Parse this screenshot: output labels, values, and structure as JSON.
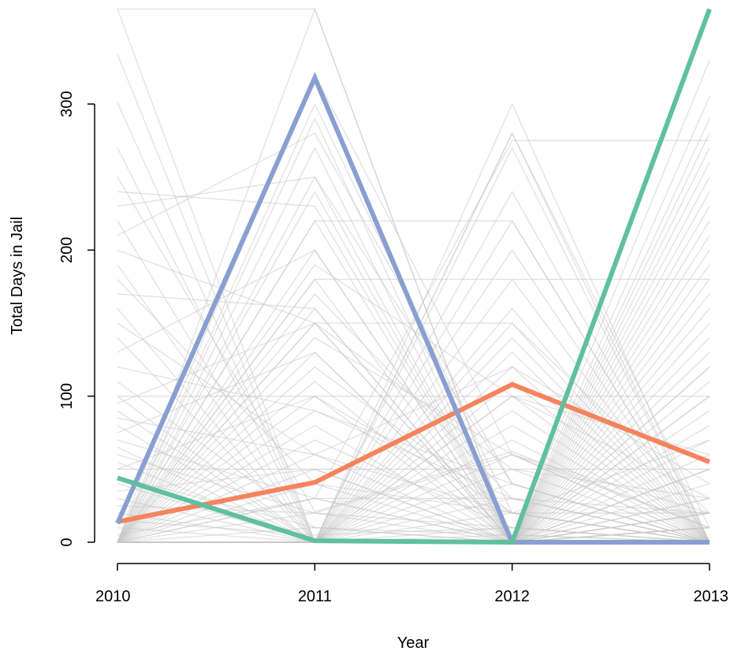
{
  "chart_data": {
    "type": "line",
    "title": "",
    "xlabel": "Year",
    "ylabel": "Total Days in Jail",
    "categories": [
      "2010",
      "2011",
      "2012",
      "2013"
    ],
    "y_ticks": [
      0,
      100,
      200,
      300
    ],
    "y_tick_labels": [
      "0",
      "100",
      "200",
      "300"
    ],
    "ylim": [
      0,
      365
    ],
    "grid": false,
    "legend": "none",
    "background_color": "#c8c8c8",
    "series": [
      {
        "color": "#f4845e",
        "values": [
          14,
          41,
          108,
          55
        ]
      },
      {
        "color": "#8a9fd1",
        "values": [
          13,
          318,
          0,
          0
        ]
      },
      {
        "color": "#5fc0a0",
        "values": [
          44,
          1,
          0,
          365
        ]
      }
    ],
    "background_lines": [
      [
        365,
        365,
        0,
        0
      ],
      [
        365,
        0,
        0,
        0
      ],
      [
        334,
        0,
        0,
        0
      ],
      [
        301,
        0,
        5,
        0
      ],
      [
        270,
        0,
        0,
        0
      ],
      [
        250,
        21,
        62,
        10
      ],
      [
        240,
        230,
        0,
        50
      ],
      [
        230,
        250,
        0,
        10
      ],
      [
        220,
        0,
        0,
        0
      ],
      [
        210,
        280,
        40,
        0
      ],
      [
        200,
        150,
        0,
        20
      ],
      [
        190,
        0,
        100,
        60
      ],
      [
        180,
        40,
        0,
        0
      ],
      [
        170,
        160,
        0,
        20
      ],
      [
        160,
        0,
        0,
        0
      ],
      [
        150,
        60,
        20,
        70
      ],
      [
        140,
        0,
        0,
        0
      ],
      [
        130,
        200,
        0,
        0
      ],
      [
        120,
        90,
        30,
        0
      ],
      [
        110,
        10,
        0,
        120
      ],
      [
        100,
        0,
        0,
        0
      ],
      [
        95,
        150,
        50,
        30
      ],
      [
        90,
        0,
        0,
        0
      ],
      [
        85,
        60,
        120,
        40
      ],
      [
        80,
        0,
        0,
        0
      ],
      [
        75,
        130,
        0,
        10
      ],
      [
        70,
        30,
        30,
        20
      ],
      [
        65,
        0,
        0,
        0
      ],
      [
        60,
        20,
        10,
        0
      ],
      [
        55,
        0,
        0,
        100
      ],
      [
        50,
        100,
        20,
        0
      ],
      [
        45,
        10,
        5,
        0
      ],
      [
        40,
        0,
        0,
        0
      ],
      [
        35,
        50,
        0,
        20
      ],
      [
        30,
        0,
        0,
        0
      ],
      [
        25,
        20,
        60,
        0
      ],
      [
        20,
        0,
        0,
        0
      ],
      [
        15,
        5,
        10,
        0
      ],
      [
        10,
        0,
        0,
        0
      ],
      [
        5,
        30,
        0,
        10
      ],
      [
        0,
        365,
        0,
        0
      ],
      [
        0,
        320,
        60,
        0
      ],
      [
        0,
        300,
        20,
        0
      ],
      [
        0,
        290,
        0,
        0
      ],
      [
        0,
        270,
        0,
        10
      ],
      [
        0,
        250,
        40,
        0
      ],
      [
        0,
        240,
        0,
        0
      ],
      [
        0,
        220,
        0,
        50
      ],
      [
        0,
        200,
        0,
        0
      ],
      [
        0,
        190,
        100,
        0
      ],
      [
        0,
        180,
        0,
        0
      ],
      [
        0,
        170,
        30,
        0
      ],
      [
        0,
        160,
        0,
        0
      ],
      [
        0,
        150,
        0,
        0
      ],
      [
        0,
        140,
        60,
        20
      ],
      [
        0,
        130,
        0,
        0
      ],
      [
        0,
        120,
        20,
        0
      ],
      [
        0,
        110,
        0,
        0
      ],
      [
        0,
        100,
        0,
        0
      ],
      [
        0,
        90,
        40,
        0
      ],
      [
        0,
        80,
        0,
        0
      ],
      [
        0,
        70,
        10,
        0
      ],
      [
        0,
        60,
        0,
        30
      ],
      [
        0,
        50,
        0,
        0
      ],
      [
        0,
        40,
        20,
        0
      ],
      [
        0,
        30,
        0,
        0
      ],
      [
        0,
        20,
        0,
        0
      ],
      [
        0,
        10,
        0,
        10
      ],
      [
        0,
        0,
        300,
        0
      ],
      [
        0,
        0,
        280,
        10
      ],
      [
        0,
        0,
        270,
        0
      ],
      [
        0,
        0,
        240,
        0
      ],
      [
        0,
        0,
        220,
        0
      ],
      [
        0,
        0,
        200,
        0
      ],
      [
        0,
        0,
        180,
        0
      ],
      [
        0,
        0,
        160,
        0
      ],
      [
        0,
        0,
        150,
        20
      ],
      [
        0,
        0,
        140,
        0
      ],
      [
        0,
        0,
        130,
        0
      ],
      [
        0,
        0,
        120,
        0
      ],
      [
        0,
        0,
        110,
        0
      ],
      [
        0,
        0,
        100,
        30
      ],
      [
        0,
        0,
        90,
        0
      ],
      [
        0,
        0,
        80,
        0
      ],
      [
        0,
        0,
        70,
        0
      ],
      [
        0,
        0,
        60,
        10
      ],
      [
        0,
        0,
        50,
        0
      ],
      [
        0,
        0,
        40,
        0
      ],
      [
        0,
        0,
        30,
        0
      ],
      [
        0,
        0,
        20,
        20
      ],
      [
        0,
        0,
        10,
        0
      ],
      [
        0,
        0,
        0,
        330
      ],
      [
        0,
        0,
        0,
        305
      ],
      [
        0,
        0,
        0,
        290
      ],
      [
        0,
        0,
        0,
        280
      ],
      [
        0,
        0,
        0,
        270
      ],
      [
        0,
        0,
        0,
        260
      ],
      [
        0,
        0,
        0,
        250
      ],
      [
        0,
        0,
        0,
        240
      ],
      [
        0,
        0,
        0,
        230
      ],
      [
        0,
        0,
        0,
        220
      ],
      [
        0,
        0,
        0,
        210
      ],
      [
        0,
        0,
        0,
        200
      ],
      [
        0,
        0,
        0,
        190
      ],
      [
        0,
        0,
        0,
        180
      ],
      [
        0,
        0,
        0,
        170
      ],
      [
        0,
        0,
        0,
        160
      ],
      [
        0,
        0,
        0,
        150
      ],
      [
        0,
        0,
        0,
        140
      ],
      [
        0,
        0,
        0,
        130
      ],
      [
        0,
        0,
        0,
        120
      ],
      [
        0,
        0,
        0,
        110
      ],
      [
        0,
        0,
        0,
        100
      ],
      [
        0,
        0,
        0,
        90
      ],
      [
        0,
        0,
        0,
        80
      ],
      [
        0,
        0,
        0,
        70
      ],
      [
        0,
        0,
        0,
        60
      ],
      [
        0,
        0,
        0,
        50
      ],
      [
        0,
        0,
        0,
        40
      ],
      [
        0,
        0,
        0,
        30
      ],
      [
        0,
        0,
        0,
        20
      ],
      [
        0,
        0,
        0,
        10
      ],
      [
        0,
        180,
        180,
        180
      ],
      [
        0,
        30,
        275,
        275
      ],
      [
        0,
        0,
        280,
        0
      ],
      [
        0,
        220,
        220,
        0
      ],
      [
        100,
        100,
        100,
        100
      ],
      [
        50,
        50,
        50,
        50
      ],
      [
        0,
        150,
        150,
        0
      ],
      [
        0,
        0,
        0,
        0
      ],
      [
        0,
        0,
        0,
        0
      ],
      [
        0,
        0,
        0,
        0
      ],
      [
        0,
        0,
        0,
        0
      ],
      [
        0,
        0,
        0,
        0
      ],
      [
        0,
        0,
        0,
        0
      ],
      [
        0,
        0,
        0,
        0
      ],
      [
        0,
        0,
        0,
        0
      ],
      [
        0,
        0,
        0,
        0
      ],
      [
        0,
        0,
        0,
        0
      ],
      [
        0,
        0,
        0,
        0
      ]
    ]
  }
}
